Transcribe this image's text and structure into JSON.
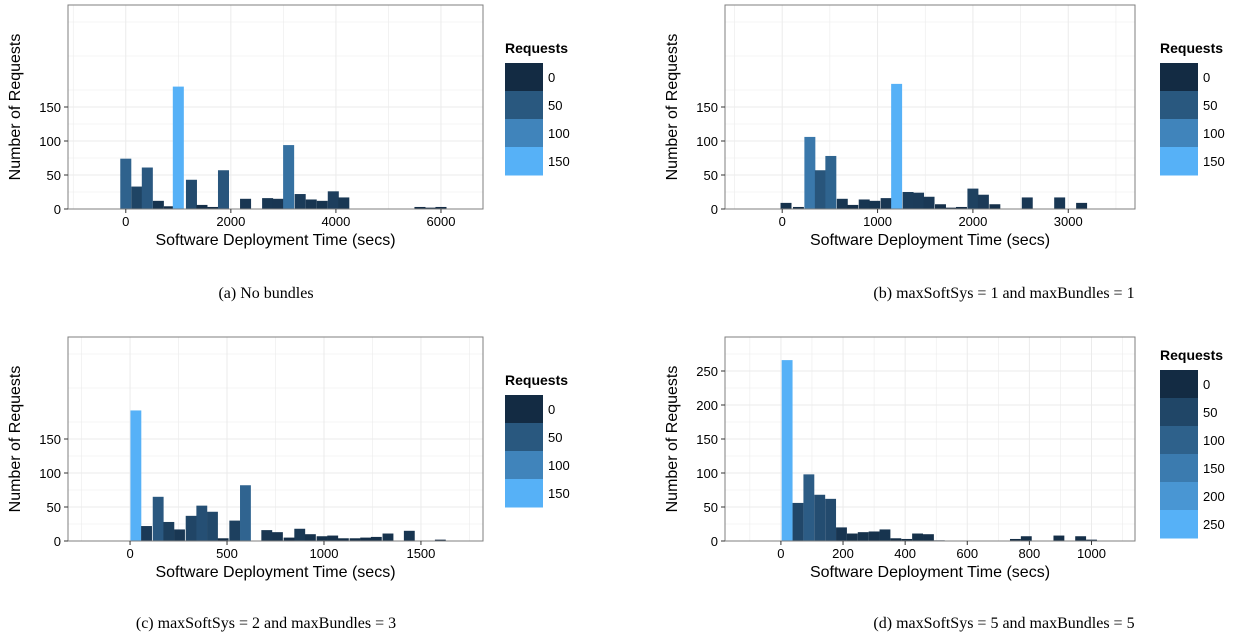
{
  "chart_data": [
    {
      "type": "bar",
      "caption": "(a)  No bundles",
      "xlabel": "Software Deployment Time (secs)",
      "ylabel": "Number of Requests",
      "xlim": [
        -1100,
        6800
      ],
      "ylim": [
        0,
        300
      ],
      "xticks": [
        0,
        2000,
        4000,
        6000
      ],
      "yticks": [
        0,
        50,
        100,
        150
      ],
      "bin_width": 210,
      "bars": [
        {
          "x": 0,
          "y": 74
        },
        {
          "x": 210,
          "y": 33
        },
        {
          "x": 410,
          "y": 61
        },
        {
          "x": 620,
          "y": 12
        },
        {
          "x": 830,
          "y": 4
        },
        {
          "x": 1000,
          "y": 180
        },
        {
          "x": 1250,
          "y": 43
        },
        {
          "x": 1450,
          "y": 6
        },
        {
          "x": 1660,
          "y": 3
        },
        {
          "x": 1860,
          "y": 57
        },
        {
          "x": 2280,
          "y": 15
        },
        {
          "x": 2700,
          "y": 16
        },
        {
          "x": 2900,
          "y": 15
        },
        {
          "x": 3100,
          "y": 94
        },
        {
          "x": 3320,
          "y": 22
        },
        {
          "x": 3530,
          "y": 14
        },
        {
          "x": 3740,
          "y": 12
        },
        {
          "x": 3950,
          "y": 26
        },
        {
          "x": 4150,
          "y": 17
        },
        {
          "x": 5600,
          "y": 3
        },
        {
          "x": 5800,
          "y": 2
        },
        {
          "x": 6000,
          "y": 3
        }
      ],
      "legend": {
        "title": "Requests",
        "labels": [
          "0",
          "50",
          "100",
          "150"
        ],
        "color_max": 180
      }
    },
    {
      "type": "bar",
      "caption": "(b)  maxSoftSys = 1 and maxBundles = 1",
      "xlabel": "Software Deployment Time (secs)",
      "ylabel": "Number of Requests",
      "xlim": [
        -600,
        3700
      ],
      "ylim": [
        0,
        300
      ],
      "xticks": [
        0,
        1000,
        2000,
        3000
      ],
      "yticks": [
        0,
        50,
        100,
        150
      ],
      "bin_width": 115,
      "bars": [
        {
          "x": 40,
          "y": 9
        },
        {
          "x": 170,
          "y": 3
        },
        {
          "x": 290,
          "y": 106
        },
        {
          "x": 400,
          "y": 57
        },
        {
          "x": 510,
          "y": 78
        },
        {
          "x": 630,
          "y": 15
        },
        {
          "x": 740,
          "y": 6
        },
        {
          "x": 860,
          "y": 14
        },
        {
          "x": 970,
          "y": 12
        },
        {
          "x": 1090,
          "y": 16
        },
        {
          "x": 1200,
          "y": 184
        },
        {
          "x": 1320,
          "y": 25
        },
        {
          "x": 1430,
          "y": 24
        },
        {
          "x": 1540,
          "y": 18
        },
        {
          "x": 1660,
          "y": 7
        },
        {
          "x": 1770,
          "y": 2
        },
        {
          "x": 1880,
          "y": 3
        },
        {
          "x": 2000,
          "y": 30
        },
        {
          "x": 2110,
          "y": 21
        },
        {
          "x": 2230,
          "y": 7
        },
        {
          "x": 2570,
          "y": 17
        },
        {
          "x": 2910,
          "y": 17
        },
        {
          "x": 3140,
          "y": 9
        }
      ],
      "legend": {
        "title": "Requests",
        "labels": [
          "0",
          "50",
          "100",
          "150"
        ],
        "color_max": 184
      }
    },
    {
      "type": "bar",
      "caption": "(c)  maxSoftSys = 2 and maxBundles = 3",
      "xlabel": "Software Deployment Time (secs)",
      "ylabel": "Number of Requests",
      "xlim": [
        -320,
        1820
      ],
      "ylim": [
        0,
        300
      ],
      "xticks": [
        0,
        500,
        1000,
        1500
      ],
      "yticks": [
        0,
        50,
        100,
        150
      ],
      "bin_width": 56,
      "bars": [
        {
          "x": 30,
          "y": 192
        },
        {
          "x": 85,
          "y": 22
        },
        {
          "x": 145,
          "y": 65
        },
        {
          "x": 200,
          "y": 28
        },
        {
          "x": 255,
          "y": 17
        },
        {
          "x": 315,
          "y": 37
        },
        {
          "x": 370,
          "y": 52
        },
        {
          "x": 425,
          "y": 43
        },
        {
          "x": 480,
          "y": 4
        },
        {
          "x": 540,
          "y": 30
        },
        {
          "x": 595,
          "y": 82
        },
        {
          "x": 705,
          "y": 16
        },
        {
          "x": 760,
          "y": 13
        },
        {
          "x": 820,
          "y": 5
        },
        {
          "x": 875,
          "y": 18
        },
        {
          "x": 930,
          "y": 10
        },
        {
          "x": 990,
          "y": 7
        },
        {
          "x": 1045,
          "y": 8
        },
        {
          "x": 1100,
          "y": 4
        },
        {
          "x": 1160,
          "y": 4
        },
        {
          "x": 1215,
          "y": 5
        },
        {
          "x": 1270,
          "y": 6
        },
        {
          "x": 1330,
          "y": 11
        },
        {
          "x": 1440,
          "y": 15
        },
        {
          "x": 1600,
          "y": 2
        }
      ],
      "legend": {
        "title": "Requests",
        "labels": [
          "0",
          "50",
          "100",
          "150"
        ],
        "color_max": 192
      }
    },
    {
      "type": "bar",
      "caption": "(d)  maxSoftSys = 5 and maxBundles = 5",
      "xlabel": "Software Deployment Time (secs)",
      "ylabel": "Number of Requests",
      "xlim": [
        -180,
        1140
      ],
      "ylim": [
        0,
        300
      ],
      "xticks": [
        0,
        200,
        400,
        600,
        800,
        1000
      ],
      "yticks": [
        0,
        50,
        100,
        150,
        200,
        250
      ],
      "bin_width": 35,
      "bars": [
        {
          "x": 20,
          "y": 266
        },
        {
          "x": 55,
          "y": 56
        },
        {
          "x": 90,
          "y": 98
        },
        {
          "x": 125,
          "y": 68
        },
        {
          "x": 160,
          "y": 62
        },
        {
          "x": 195,
          "y": 20
        },
        {
          "x": 230,
          "y": 11
        },
        {
          "x": 265,
          "y": 13
        },
        {
          "x": 300,
          "y": 14
        },
        {
          "x": 335,
          "y": 17
        },
        {
          "x": 370,
          "y": 4
        },
        {
          "x": 405,
          "y": 3
        },
        {
          "x": 440,
          "y": 11
        },
        {
          "x": 475,
          "y": 10
        },
        {
          "x": 510,
          "y": 1
        },
        {
          "x": 755,
          "y": 3
        },
        {
          "x": 790,
          "y": 7
        },
        {
          "x": 895,
          "y": 8
        },
        {
          "x": 965,
          "y": 7
        },
        {
          "x": 1000,
          "y": 2
        }
      ],
      "legend": {
        "title": "Requests",
        "labels": [
          "0",
          "50",
          "100",
          "150",
          "200",
          "250"
        ],
        "color_max": 266
      }
    }
  ],
  "colors": {
    "low": "#132b43",
    "high": "#56b1f7",
    "grid": "#ebebeb",
    "panel_border": "#7f7f7f"
  }
}
